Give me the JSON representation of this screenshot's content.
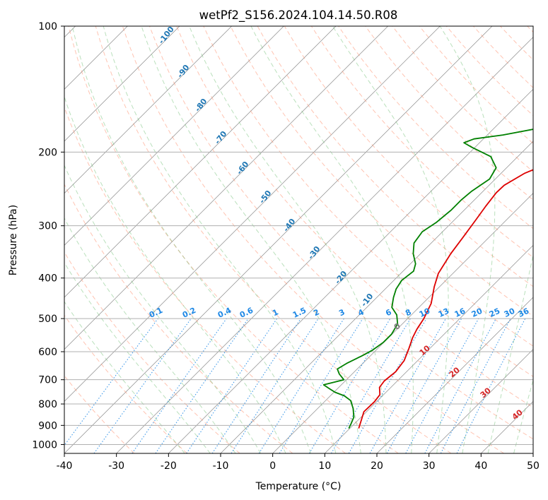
{
  "chart_data": {
    "type": "line",
    "title": "wetPf2_S156.2024.104.14.50.R08",
    "xlabel": "Temperature (°C)",
    "ylabel": "Pressure (hPa)",
    "xlim": [
      -40,
      50
    ],
    "ylim_pressure": [
      1050,
      100
    ],
    "log_pressure_axis": true,
    "skew_chart": true,
    "grid": true,
    "x_ticks": [
      -40,
      -30,
      -20,
      -10,
      0,
      10,
      20,
      30,
      40,
      50
    ],
    "y_ticks": [
      100,
      200,
      300,
      400,
      500,
      600,
      700,
      800,
      900,
      1000
    ],
    "series": [
      {
        "color": "#dd0000",
        "points": [
          [
            11.7,
            915
          ],
          [
            10.5,
            870
          ],
          [
            9.5,
            835
          ],
          [
            9.6,
            790
          ],
          [
            9.3,
            760
          ],
          [
            7.8,
            730
          ],
          [
            7.5,
            705
          ],
          [
            7.9,
            670
          ],
          [
            7.4,
            630
          ],
          [
            6.0,
            590
          ],
          [
            4.6,
            555
          ],
          [
            3.8,
            530
          ],
          [
            3.1,
            500
          ],
          [
            1.6,
            460
          ],
          [
            -1.0,
            420
          ],
          [
            -2.8,
            390
          ],
          [
            -4.2,
            350
          ],
          [
            -5.0,
            320
          ],
          [
            -5.9,
            290
          ],
          [
            -6.6,
            270
          ],
          [
            -7.2,
            250
          ],
          [
            -7.1,
            240
          ],
          [
            -5.5,
            225
          ],
          [
            -2.2,
            210
          ],
          [
            1.3,
            200
          ],
          [
            5.3,
            190
          ],
          [
            8.2,
            178
          ],
          [
            10.2,
            165
          ],
          [
            12.8,
            150
          ],
          [
            14.8,
            140
          ],
          [
            17.9,
            128
          ],
          [
            19.9,
            120
          ],
          [
            22.3,
            113
          ],
          [
            24.4,
            107
          ],
          [
            25.7,
            102
          ],
          [
            26.4,
            100
          ]
        ]
      },
      {
        "color": "#008000",
        "points": [
          [
            9.8,
            915
          ],
          [
            9.3,
            890
          ],
          [
            8.6,
            860
          ],
          [
            6.8,
            820
          ],
          [
            4.8,
            785
          ],
          [
            2.7,
            765
          ],
          [
            0.2,
            750
          ],
          [
            -1.6,
            735
          ],
          [
            -3.4,
            720
          ],
          [
            -0.5,
            700
          ],
          [
            -2.5,
            678
          ],
          [
            -3.8,
            660
          ],
          [
            -3.1,
            640
          ],
          [
            -1.7,
            615
          ],
          [
            -0.7,
            595
          ],
          [
            -0.1,
            570
          ],
          [
            -0.1,
            545
          ],
          [
            -0.9,
            515
          ],
          [
            -2.8,
            490
          ],
          [
            -5.2,
            470
          ],
          [
            -6.8,
            445
          ],
          [
            -7.9,
            425
          ],
          [
            -8.5,
            405
          ],
          [
            -8.0,
            385
          ],
          [
            -9.0,
            370
          ],
          [
            -11.4,
            350
          ],
          [
            -13.3,
            330
          ],
          [
            -13.9,
            310
          ],
          [
            -13.0,
            295
          ],
          [
            -12.5,
            275
          ],
          [
            -12.5,
            260
          ],
          [
            -12.2,
            248
          ],
          [
            -11.1,
            232
          ],
          [
            -12.0,
            218
          ],
          [
            -15.2,
            205
          ],
          [
            -20.5,
            195
          ],
          [
            -23.0,
            190
          ],
          [
            -21.8,
            186
          ],
          [
            -17.0,
            182
          ],
          [
            -12.0,
            176
          ],
          [
            -7.2,
            168
          ],
          [
            -5.8,
            160
          ],
          [
            -5.3,
            150
          ],
          [
            -5.8,
            140
          ],
          [
            -5.5,
            130
          ],
          [
            -3.5,
            123
          ],
          [
            -3.0,
            118
          ],
          [
            -3.4,
            113
          ],
          [
            -2.5,
            108
          ],
          [
            -0.6,
            103
          ],
          [
            0.1,
            100
          ]
        ]
      }
    ],
    "dry_adiabat_labels": [
      "-100",
      "-90",
      "-80",
      "-70",
      "-60",
      "-50",
      "-40",
      "-30",
      "-20",
      "-10"
    ],
    "mixing_ratio_labels": [
      "0.1",
      "0.2",
      "0.4",
      "0.6",
      "1",
      "1.5",
      "2",
      "3",
      "4",
      "6",
      "8",
      "10",
      "13",
      "16",
      "20",
      "25",
      "30",
      "36"
    ],
    "moist_adiabat_labels": [
      "0",
      "10",
      "20",
      "30",
      "40"
    ]
  },
  "colors": {
    "temperature": "#dd0000",
    "dewpoint": "#008000",
    "dry_adiabat": "#ff8a65",
    "moist_adiabat": "#66bb6a",
    "mixing_ratio": "#1e88e5",
    "isotherm": "#8c8c8c",
    "label_blue": "#1f77b4",
    "label_red": "#d62728"
  }
}
